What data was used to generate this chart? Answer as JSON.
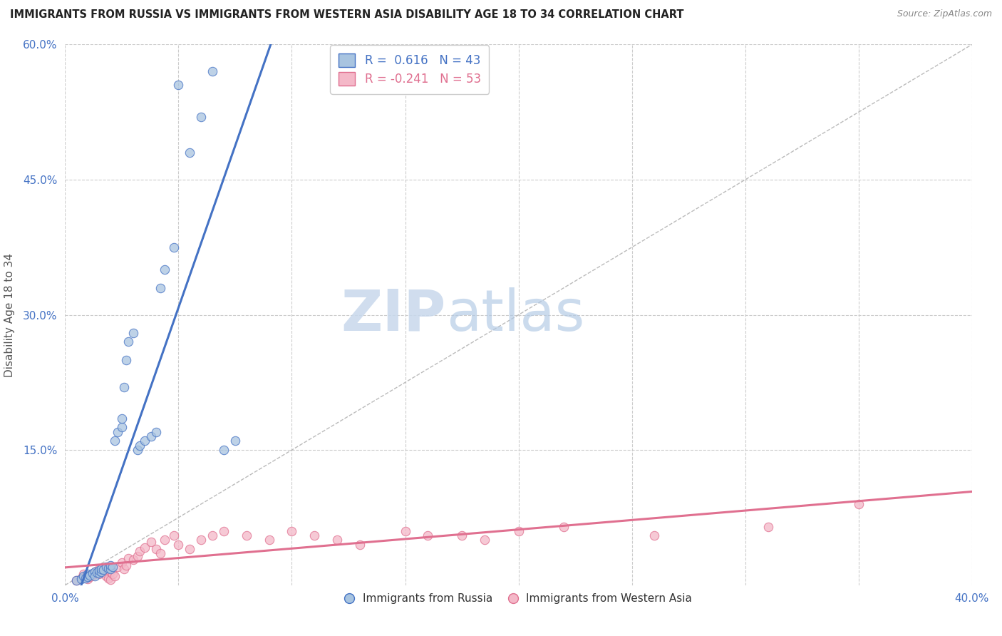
{
  "title": "IMMIGRANTS FROM RUSSIA VS IMMIGRANTS FROM WESTERN ASIA DISABILITY AGE 18 TO 34 CORRELATION CHART",
  "source": "Source: ZipAtlas.com",
  "ylabel": "Disability Age 18 to 34",
  "xlim": [
    0.0,
    0.4
  ],
  "ylim": [
    0.0,
    0.6
  ],
  "russia_color": "#a8c4e0",
  "western_asia_color": "#f4b8c8",
  "russia_edge_color": "#4472c4",
  "western_asia_edge_color": "#e07090",
  "russia_line_color": "#4472c4",
  "western_asia_line_color": "#e07090",
  "russia_scatter_x": [
    0.005,
    0.007,
    0.008,
    0.009,
    0.01,
    0.01,
    0.011,
    0.012,
    0.013,
    0.013,
    0.014,
    0.015,
    0.015,
    0.016,
    0.016,
    0.017,
    0.018,
    0.019,
    0.02,
    0.02,
    0.021,
    0.022,
    0.023,
    0.025,
    0.025,
    0.026,
    0.027,
    0.028,
    0.03,
    0.032,
    0.033,
    0.035,
    0.038,
    0.04,
    0.042,
    0.044,
    0.048,
    0.05,
    0.055,
    0.06,
    0.065,
    0.07,
    0.075
  ],
  "russia_scatter_y": [
    0.005,
    0.007,
    0.01,
    0.008,
    0.012,
    0.009,
    0.011,
    0.013,
    0.015,
    0.01,
    0.014,
    0.013,
    0.016,
    0.015,
    0.018,
    0.017,
    0.02,
    0.019,
    0.018,
    0.022,
    0.02,
    0.16,
    0.17,
    0.175,
    0.185,
    0.22,
    0.25,
    0.27,
    0.28,
    0.15,
    0.155,
    0.16,
    0.165,
    0.17,
    0.33,
    0.35,
    0.375,
    0.555,
    0.48,
    0.52,
    0.57,
    0.15,
    0.16
  ],
  "western_asia_scatter_x": [
    0.005,
    0.007,
    0.008,
    0.009,
    0.01,
    0.011,
    0.012,
    0.013,
    0.014,
    0.015,
    0.015,
    0.016,
    0.017,
    0.018,
    0.019,
    0.02,
    0.02,
    0.021,
    0.022,
    0.023,
    0.025,
    0.026,
    0.027,
    0.028,
    0.03,
    0.032,
    0.033,
    0.035,
    0.038,
    0.04,
    0.042,
    0.044,
    0.048,
    0.05,
    0.055,
    0.06,
    0.065,
    0.07,
    0.08,
    0.09,
    0.1,
    0.11,
    0.12,
    0.13,
    0.15,
    0.16,
    0.175,
    0.185,
    0.2,
    0.22,
    0.26,
    0.31,
    0.35
  ],
  "western_asia_scatter_y": [
    0.005,
    0.008,
    0.012,
    0.01,
    0.007,
    0.009,
    0.011,
    0.013,
    0.015,
    0.012,
    0.018,
    0.016,
    0.014,
    0.01,
    0.008,
    0.006,
    0.015,
    0.012,
    0.01,
    0.02,
    0.025,
    0.018,
    0.022,
    0.03,
    0.028,
    0.032,
    0.038,
    0.042,
    0.048,
    0.04,
    0.035,
    0.05,
    0.055,
    0.045,
    0.04,
    0.05,
    0.055,
    0.06,
    0.055,
    0.05,
    0.06,
    0.055,
    0.05,
    0.045,
    0.06,
    0.055,
    0.055,
    0.05,
    0.06,
    0.065,
    0.055,
    0.065,
    0.09
  ],
  "watermark_zip": "ZIP",
  "watermark_atlas": "atlas",
  "background_color": "#ffffff",
  "grid_color": "#cccccc",
  "ref_line_color": "#bbbbbb"
}
